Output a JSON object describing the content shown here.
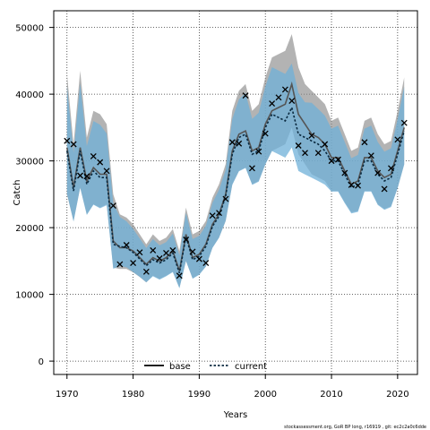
{
  "chart_data": {
    "type": "line",
    "xlabel": "Years",
    "ylabel": "Catch",
    "xlim": [
      1968,
      2023
    ],
    "ylim": [
      -2000,
      52500
    ],
    "x_ticks": [
      1970,
      1980,
      1990,
      2000,
      2010,
      2020
    ],
    "y_ticks": [
      0,
      10000,
      20000,
      30000,
      40000,
      50000
    ],
    "grid": true,
    "legend_position": "bottom-center",
    "colors": {
      "base_line": "#555555",
      "base_band": "#8a8a8a",
      "current_line": "#0a2a40",
      "current_band": "#6fb0d8",
      "observed": "#000000"
    },
    "x": [
      1970,
      1971,
      1972,
      1973,
      1974,
      1975,
      1976,
      1977,
      1978,
      1979,
      1980,
      1981,
      1982,
      1983,
      1984,
      1985,
      1986,
      1987,
      1988,
      1989,
      1990,
      1991,
      1992,
      1993,
      1994,
      1995,
      1996,
      1997,
      1998,
      1999,
      2000,
      2001,
      2002,
      2003,
      2004,
      2005,
      2006,
      2007,
      2008,
      2009,
      2010,
      2011,
      2012,
      2013,
      2014,
      2015,
      2016,
      2017,
      2018,
      2019,
      2020,
      2021
    ],
    "observed": [
      33000,
      32500,
      27800,
      27700,
      30700,
      29800,
      28500,
      23300,
      14500,
      17400,
      14700,
      16300,
      13400,
      16600,
      15400,
      16200,
      16600,
      12800,
      18200,
      16400,
      15300,
      14700,
      21800,
      22200,
      24300,
      32800,
      32600,
      39800,
      28900,
      31400,
      34100,
      38600,
      39500,
      40700,
      39000,
      32300,
      31200,
      33800,
      31200,
      32500,
      30000,
      30200,
      28200,
      26400,
      26300,
      32800,
      30800,
      28200,
      25800,
      28900,
      33200,
      35700
    ],
    "series": [
      {
        "name": "base",
        "values": [
          32000,
          26000,
          32000,
          27000,
          29000,
          28000,
          28000,
          18000,
          17000,
          17000,
          16500,
          15500,
          14500,
          15500,
          15000,
          15500,
          16500,
          13500,
          19000,
          15500,
          16000,
          17500,
          20500,
          22000,
          25000,
          31500,
          34000,
          34500,
          31500,
          32000,
          35500,
          37500,
          38000,
          38500,
          41500,
          37000,
          35500,
          34000,
          33500,
          32500,
          30500,
          30500,
          28500,
          26500,
          27000,
          30500,
          30500,
          28500,
          27500,
          28000,
          31500,
          35000
        ],
        "lower": [
          25000,
          21000,
          26000,
          22000,
          23500,
          23000,
          23500,
          14000,
          13800,
          13800,
          13300,
          12600,
          11800,
          12800,
          12300,
          12800,
          13400,
          11000,
          15000,
          12400,
          13000,
          14200,
          17000,
          18500,
          21000,
          26500,
          28500,
          29000,
          26500,
          27000,
          29500,
          31500,
          32000,
          32500,
          35000,
          31000,
          29500,
          28000,
          27500,
          27000,
          25500,
          25500,
          23800,
          22300,
          22500,
          25500,
          25500,
          23500,
          22800,
          23200,
          26000,
          29500
        ],
        "upper": [
          43000,
          32500,
          43500,
          33500,
          37500,
          37000,
          35500,
          25000,
          22000,
          21500,
          20500,
          19000,
          17500,
          19000,
          18000,
          18500,
          19800,
          16500,
          23000,
          19000,
          19500,
          21000,
          24500,
          26500,
          29500,
          37500,
          40500,
          41500,
          37500,
          38500,
          42500,
          45500,
          46000,
          46500,
          49000,
          44000,
          41500,
          40500,
          39500,
          38500,
          36000,
          36500,
          34000,
          31500,
          32000,
          36000,
          36500,
          34000,
          32500,
          33000,
          37500,
          42500
        ]
      },
      {
        "name": "current",
        "values": [
          31500,
          25500,
          31500,
          26500,
          28500,
          27500,
          27500,
          17500,
          17200,
          17000,
          16300,
          15300,
          14300,
          15200,
          14700,
          15200,
          16200,
          13200,
          18700,
          15200,
          15700,
          17200,
          20200,
          21700,
          24700,
          31000,
          33500,
          34000,
          31000,
          31500,
          35000,
          37000,
          36500,
          36000,
          38000,
          34000,
          33500,
          33000,
          32500,
          31500,
          30000,
          30000,
          28000,
          26000,
          26500,
          30000,
          30000,
          28000,
          27000,
          27500,
          31000,
          34500
        ]
      }
    ]
  },
  "footer": {
    "text": "stockassessment.org, GoR BP long, r16919 , git: ec2c2a0c6dde"
  }
}
